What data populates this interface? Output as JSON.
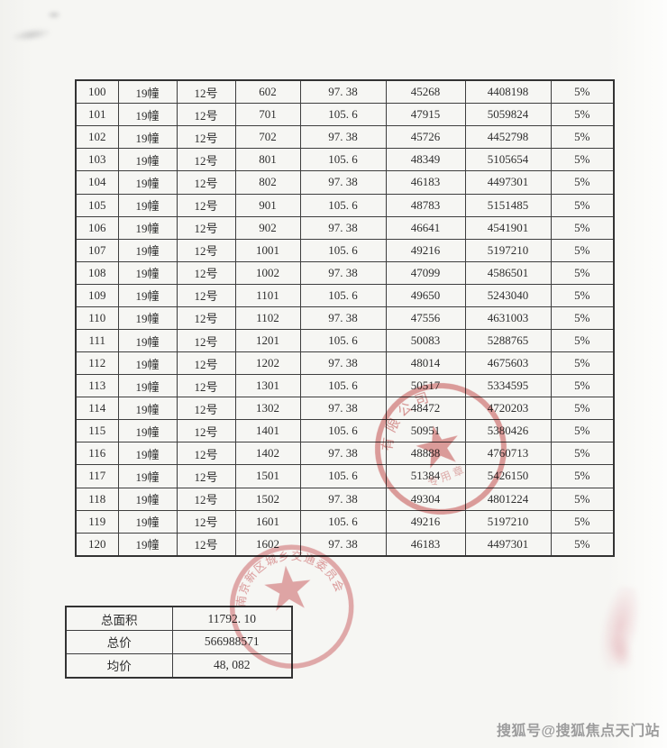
{
  "watermark": "搜狐号@搜狐焦点天门站",
  "colors": {
    "paper": "#f6f6f3",
    "table_border": "#3e3e3e",
    "ink_text": "#2e2e2e",
    "stamp_red": "#c84a4a",
    "watermark_gray": "#9c9c9c"
  },
  "table": {
    "columns": [
      "no",
      "building",
      "unit",
      "room",
      "area",
      "unit_price",
      "total_price",
      "tax_rate"
    ],
    "rows": [
      {
        "no": "100",
        "building": "19幢",
        "unit": "12号",
        "room": "602",
        "area": "97. 38",
        "unit_price": "45268",
        "total_price": "4408198",
        "tax_rate": "5%"
      },
      {
        "no": "101",
        "building": "19幢",
        "unit": "12号",
        "room": "701",
        "area": "105. 6",
        "unit_price": "47915",
        "total_price": "5059824",
        "tax_rate": "5%"
      },
      {
        "no": "102",
        "building": "19幢",
        "unit": "12号",
        "room": "702",
        "area": "97. 38",
        "unit_price": "45726",
        "total_price": "4452798",
        "tax_rate": "5%"
      },
      {
        "no": "103",
        "building": "19幢",
        "unit": "12号",
        "room": "801",
        "area": "105. 6",
        "unit_price": "48349",
        "total_price": "5105654",
        "tax_rate": "5%"
      },
      {
        "no": "104",
        "building": "19幢",
        "unit": "12号",
        "room": "802",
        "area": "97. 38",
        "unit_price": "46183",
        "total_price": "4497301",
        "tax_rate": "5%"
      },
      {
        "no": "105",
        "building": "19幢",
        "unit": "12号",
        "room": "901",
        "area": "105. 6",
        "unit_price": "48783",
        "total_price": "5151485",
        "tax_rate": "5%"
      },
      {
        "no": "106",
        "building": "19幢",
        "unit": "12号",
        "room": "902",
        "area": "97. 38",
        "unit_price": "46641",
        "total_price": "4541901",
        "tax_rate": "5%"
      },
      {
        "no": "107",
        "building": "19幢",
        "unit": "12号",
        "room": "1001",
        "area": "105. 6",
        "unit_price": "49216",
        "total_price": "5197210",
        "tax_rate": "5%"
      },
      {
        "no": "108",
        "building": "19幢",
        "unit": "12号",
        "room": "1002",
        "area": "97. 38",
        "unit_price": "47099",
        "total_price": "4586501",
        "tax_rate": "5%"
      },
      {
        "no": "109",
        "building": "19幢",
        "unit": "12号",
        "room": "1101",
        "area": "105. 6",
        "unit_price": "49650",
        "total_price": "5243040",
        "tax_rate": "5%"
      },
      {
        "no": "110",
        "building": "19幢",
        "unit": "12号",
        "room": "1102",
        "area": "97. 38",
        "unit_price": "47556",
        "total_price": "4631003",
        "tax_rate": "5%"
      },
      {
        "no": "111",
        "building": "19幢",
        "unit": "12号",
        "room": "1201",
        "area": "105. 6",
        "unit_price": "50083",
        "total_price": "5288765",
        "tax_rate": "5%"
      },
      {
        "no": "112",
        "building": "19幢",
        "unit": "12号",
        "room": "1202",
        "area": "97. 38",
        "unit_price": "48014",
        "total_price": "4675603",
        "tax_rate": "5%"
      },
      {
        "no": "113",
        "building": "19幢",
        "unit": "12号",
        "room": "1301",
        "area": "105. 6",
        "unit_price": "50517",
        "total_price": "5334595",
        "tax_rate": "5%"
      },
      {
        "no": "114",
        "building": "19幢",
        "unit": "12号",
        "room": "1302",
        "area": "97. 38",
        "unit_price": "48472",
        "total_price": "4720203",
        "tax_rate": "5%"
      },
      {
        "no": "115",
        "building": "19幢",
        "unit": "12号",
        "room": "1401",
        "area": "105. 6",
        "unit_price": "50951",
        "total_price": "5380426",
        "tax_rate": "5%"
      },
      {
        "no": "116",
        "building": "19幢",
        "unit": "12号",
        "room": "1402",
        "area": "97. 38",
        "unit_price": "48888",
        "total_price": "4760713",
        "tax_rate": "5%"
      },
      {
        "no": "117",
        "building": "19幢",
        "unit": "12号",
        "room": "1501",
        "area": "105. 6",
        "unit_price": "51384",
        "total_price": "5426150",
        "tax_rate": "5%"
      },
      {
        "no": "118",
        "building": "19幢",
        "unit": "12号",
        "room": "1502",
        "area": "97. 38",
        "unit_price": "49304",
        "total_price": "4801224",
        "tax_rate": "5%"
      },
      {
        "no": "119",
        "building": "19幢",
        "unit": "12号",
        "room": "1601",
        "area": "105. 6",
        "unit_price": "49216",
        "total_price": "5197210",
        "tax_rate": "5%"
      },
      {
        "no": "120",
        "building": "19幢",
        "unit": "12号",
        "room": "1602",
        "area": "97. 38",
        "unit_price": "46183",
        "total_price": "4497301",
        "tax_rate": "5%"
      }
    ]
  },
  "summary": {
    "rows": [
      {
        "label": "总面积",
        "value": "11792. 10"
      },
      {
        "label": "总价",
        "value": "566988571"
      },
      {
        "label": "均价",
        "value": "48, 082"
      }
    ]
  },
  "stamps": {
    "upper": {
      "arc_text": "有限公司",
      "inner_text": "专用章"
    },
    "lower": {
      "arc_text": "南京新区城乡交通委员会"
    }
  }
}
